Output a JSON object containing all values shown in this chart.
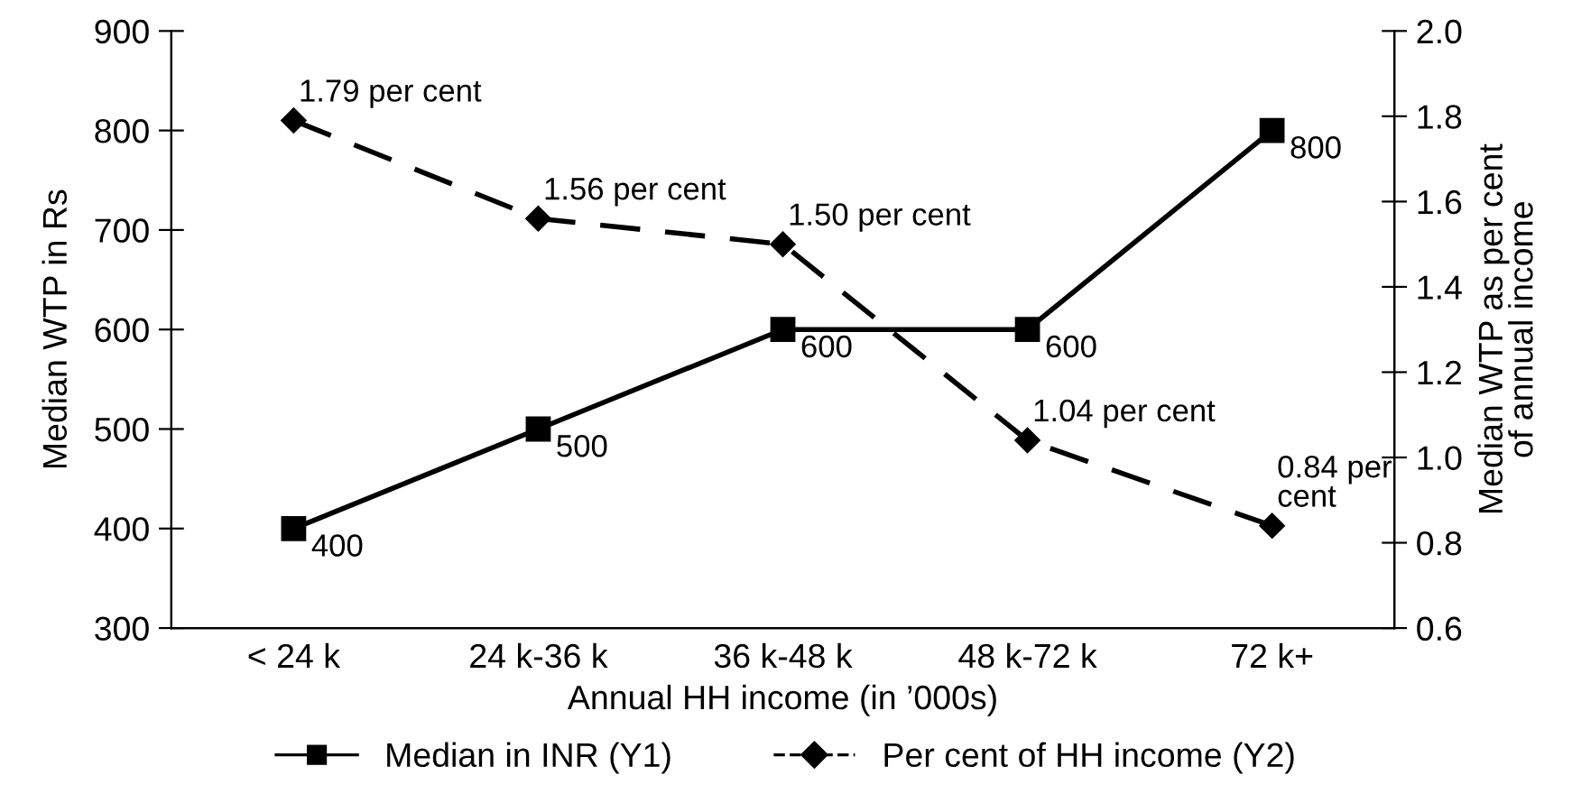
{
  "chart_data": {
    "type": "line",
    "xlabel": "Annual HH income (in ’000s)",
    "ylabel": "Median WTP in Rs",
    "y2label": "Median WTP as per cent\nof annual income",
    "categories": [
      "< 24 k",
      "24 k-36 k",
      "36 k-48 k",
      "48 k-72 k",
      "72 k+"
    ],
    "series": [
      {
        "name": "Median in INR (Y1)",
        "color": "#000000",
        "values": [
          400,
          500,
          600,
          600,
          800
        ],
        "value_labels": [
          "400",
          "500",
          "600",
          "600",
          "800"
        ],
        "marker": "square",
        "line_style": "solid"
      },
      {
        "name": "Per cent of HH income (Y2)",
        "color": "#000000",
        "values": [
          1.79,
          1.56,
          1.5,
          1.04,
          0.84
        ],
        "value_labels": [
          "1.79 per cent",
          "1.56 per cent",
          "1.50 per cent",
          "1.04 per cent",
          "0.84 per\ncent"
        ],
        "axis": "y2",
        "marker": "diamond",
        "line_style": "dashed"
      }
    ],
    "ylim": [
      300,
      900
    ],
    "yticks": [
      300,
      400,
      500,
      600,
      700,
      800,
      900
    ],
    "y2lim": [
      0.6,
      2.0
    ],
    "y2ticks": [
      0.6,
      0.8,
      {
        "value": 1,
        "label": "1.0"
      },
      1.2,
      1.4,
      1.6,
      1.8,
      {
        "value": 2,
        "label": "2.0"
      }
    ],
    "grid": false,
    "legend": "bottom"
  }
}
